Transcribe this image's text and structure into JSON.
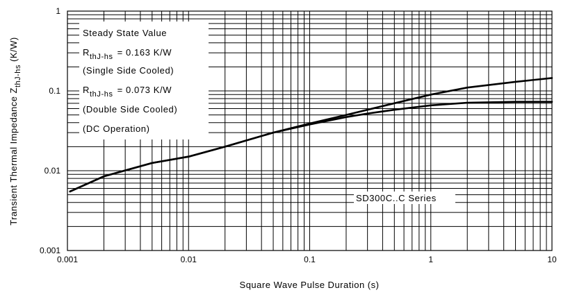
{
  "chart_data": {
    "type": "line",
    "xscale": "log",
    "yscale": "log",
    "xlabel": "Square Wave Pulse Duration (s)",
    "ylabel": "Transient Thermal Impedance Z",
    "ylabel_sub": "thJ-hs",
    "ylabel_unit": " (K/W)",
    "xlim": [
      0.001,
      10
    ],
    "ylim": [
      0.001,
      1
    ],
    "xticks": [
      0.001,
      0.01,
      0.1,
      1,
      10
    ],
    "xtick_labels": [
      "0.001",
      "0.01",
      "0.1",
      "1",
      "10"
    ],
    "yticks": [
      0.001,
      0.01,
      0.1,
      1
    ],
    "ytick_labels": [
      "0.001",
      "0.01",
      "0.1",
      "1"
    ],
    "grid": true,
    "series": [
      {
        "x": [
          0.00105,
          0.002,
          0.005,
          0.01,
          0.02,
          0.05,
          0.1,
          0.2,
          0.3,
          0.5,
          1,
          2,
          5,
          10
        ],
        "y": [
          0.0055,
          0.0085,
          0.0125,
          0.015,
          0.02,
          0.03,
          0.039,
          0.05,
          0.058,
          0.07,
          0.09,
          0.11,
          0.13,
          0.145
        ]
      },
      {
        "x": [
          0.00105,
          0.002,
          0.005,
          0.01,
          0.02,
          0.05,
          0.1,
          0.2,
          0.3,
          0.5,
          1,
          2,
          5,
          10
        ],
        "y": [
          0.0055,
          0.0085,
          0.0125,
          0.015,
          0.02,
          0.03,
          0.038,
          0.047,
          0.052,
          0.058,
          0.066,
          0.071,
          0.073,
          0.073
        ]
      }
    ],
    "annotations": {
      "line1": "Steady State Value",
      "r1_symbol": "R",
      "r1_sub": "thJ-hs",
      "r1_value": "= 0.163 K/W",
      "line3": "(Single Side Cooled)",
      "r2_symbol": "R",
      "r2_sub": "thJ-hs",
      "r2_value": "= 0.073 K/W",
      "line5": "(Double Side Cooled)",
      "line6": "(DC Operation)",
      "series_label": "SD300C..C Series"
    }
  }
}
